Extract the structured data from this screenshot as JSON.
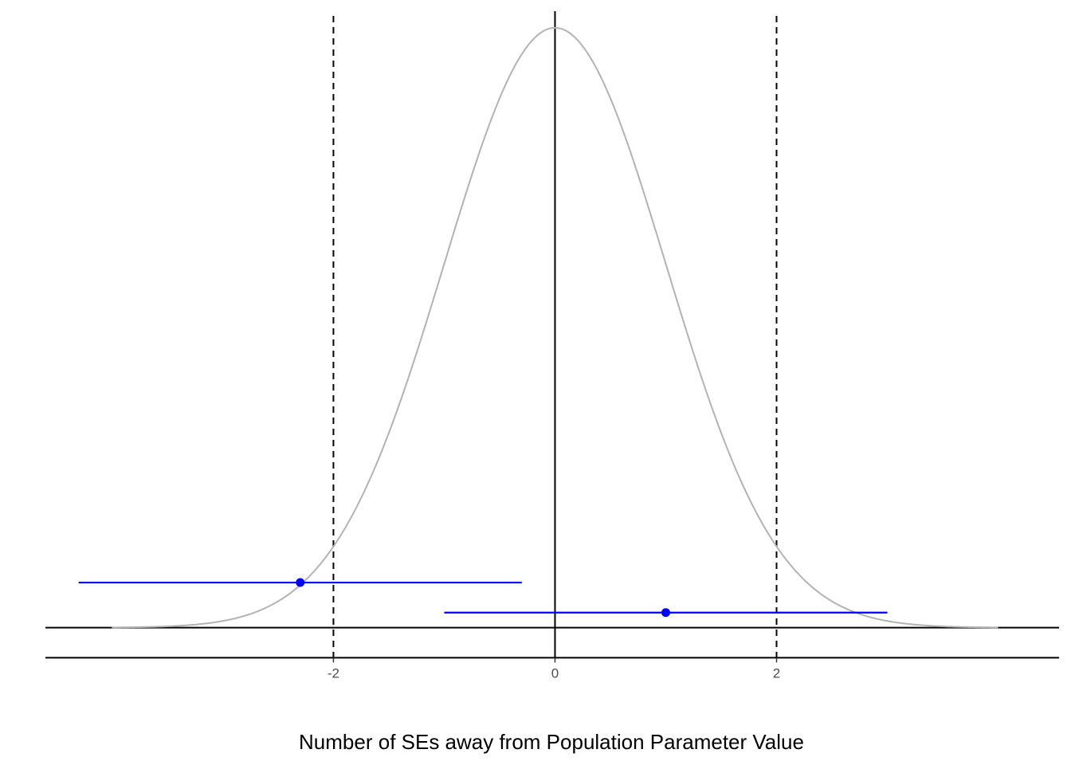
{
  "chart_data": {
    "type": "line",
    "title": "",
    "xlabel": "Number of SEs away from Population Parameter Value",
    "ylabel": "",
    "xlim": [
      -4.6,
      4.55
    ],
    "ylim": [
      -0.05,
      0.41
    ],
    "x_ticks": [
      -2,
      0,
      2
    ],
    "x_tick_labels": [
      "-2",
      "0",
      "2"
    ],
    "grid": false,
    "legend": "none",
    "density_curve": {
      "distribution": "standard normal",
      "x_range": [
        -4,
        4
      ],
      "color": "#b3b3b3"
    },
    "reference_lines": {
      "solid_vertical_x": 0,
      "dashed_vertical_x": [
        -2,
        2
      ],
      "horizontal_y": [
        0,
        -0.02
      ]
    },
    "intervals": [
      {
        "estimate": -2.3,
        "lower": -4.3,
        "upper": -0.3,
        "y": 0.03
      },
      {
        "estimate": 1.0,
        "lower": -1.0,
        "upper": 3.0,
        "y": 0.01
      }
    ],
    "colors": {
      "interval": "#0000ff",
      "curve": "#b3b3b3",
      "lines": "#000000"
    }
  }
}
